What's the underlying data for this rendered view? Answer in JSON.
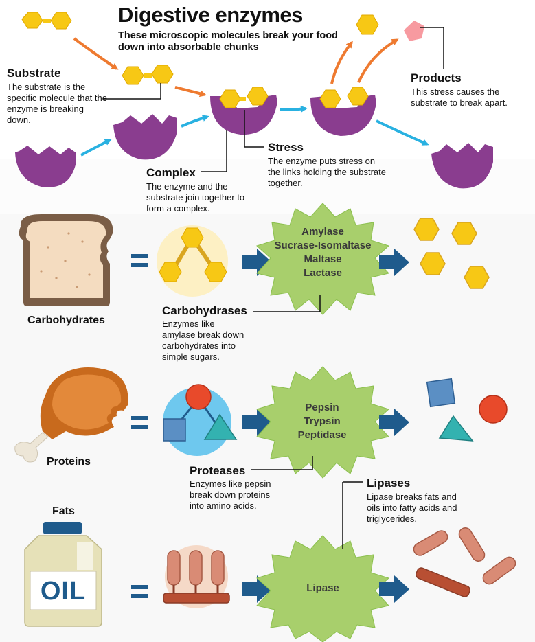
{
  "title": "Digestive enzymes",
  "subtitle": "These microscopic molecules break your food down into absorbable chunks",
  "labels": {
    "substrate": {
      "head": "Substrate",
      "body": "The substrate is the specific molecule that the enzyme is breaking down."
    },
    "products": {
      "head": "Products",
      "body": "This stress causes the substrate to break apart."
    },
    "stress": {
      "head": "Stress",
      "body": "The enzyme puts stress on the links holding the substrate together."
    },
    "complex": {
      "head": "Complex",
      "body": "The enzyme and the substrate join together to form a complex."
    }
  },
  "rows": {
    "carbs": {
      "food": "Carbohydrates",
      "enzymes": [
        "Amylase",
        "Sucrase-Isomaltase",
        "Maltase",
        "Lactase"
      ],
      "class_head": "Carbohydrases",
      "class_body": "Enzymes like amylase break down carbohydrates into simple sugars."
    },
    "proteins": {
      "food": "Proteins",
      "enzymes": [
        "Pepsin",
        "Trypsin",
        "Peptidase"
      ],
      "class_head": "Proteases",
      "class_body": "Enzymes like pepsin break down proteins into amino acids."
    },
    "fats": {
      "food": "Fats",
      "container_label": "OIL",
      "enzymes": [
        "Lipase"
      ],
      "class_head": "Lipases",
      "class_body": "Lipase breaks fats and oils into fatty acids and triglycerides."
    }
  },
  "equals": "=",
  "colors": {
    "enzyme_purple": "#8a3d8f",
    "substrate_yellow": "#f7c815",
    "arrow_orange": "#ee7a30",
    "arrow_cyan": "#29b1e1",
    "arrow_navy": "#1f5b8c",
    "burst_green": "#a8cf6c",
    "product_pink": "#f79aa0"
  }
}
